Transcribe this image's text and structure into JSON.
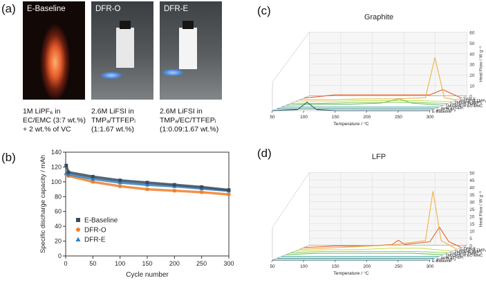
{
  "panel_labels": {
    "a": "(a)",
    "b": "(b)",
    "c": "(c)",
    "d": "(d)"
  },
  "photos": [
    {
      "title": "E-Baseline",
      "caption": [
        "1M LiPF₆ in",
        "EC/EMC (3:7 wt.%)",
        "+ 2 wt.% of VC"
      ]
    },
    {
      "title": "DFR-O",
      "caption": [
        "2.6M LiFSI in",
        "TMPₐ/TTFEPᵢ",
        "(1:1.67 wt.%)"
      ]
    },
    {
      "title": "DFR-E",
      "caption": [
        "2.6M LiFSI in",
        "TMPₐ/EC/TTFEPᵢ",
        "(1:0.09:1.67 wt.%)"
      ]
    }
  ],
  "chart_data": [
    {
      "type": "scatter",
      "panel": "(b)",
      "xlabel": "Cycle number",
      "ylabel": "Specific discharge capacity / mAh",
      "xlim": [
        0,
        300
      ],
      "ylim": [
        0,
        140
      ],
      "xticks": [
        0,
        50,
        100,
        150,
        200,
        250,
        300
      ],
      "yticks": [
        0,
        20,
        40,
        60,
        80,
        100,
        120,
        140
      ],
      "series": [
        {
          "name": "E-Baseline",
          "color": "#3a4a5c",
          "marker": "square",
          "x": [
            1,
            5,
            50,
            100,
            150,
            200,
            250,
            300
          ],
          "y": [
            122,
            113,
            107,
            102,
            99,
            96,
            93,
            89
          ]
        },
        {
          "name": "DFR-O",
          "color": "#f07f2a",
          "marker": "circle",
          "x": [
            1,
            5,
            50,
            100,
            150,
            200,
            250,
            300
          ],
          "y": [
            110,
            108,
            100,
            94,
            90,
            88,
            86,
            83
          ]
        },
        {
          "name": "DFR-E",
          "color": "#2f7fc1",
          "marker": "triangle",
          "x": [
            1,
            5,
            50,
            100,
            150,
            200,
            250,
            300
          ],
          "y": [
            112,
            110,
            104,
            99,
            96,
            94,
            91,
            88
          ]
        }
      ]
    },
    {
      "type": "line",
      "panel": "(c)",
      "title": "Graphite",
      "xlabel": "Temperature / °C",
      "ylabel": "Heat Flow / W g⁻¹",
      "xticks": [
        50,
        100,
        150,
        200,
        250,
        300
      ],
      "zticks": [
        0,
        10,
        20,
        30,
        40,
        50,
        60
      ],
      "series": [
        {
          "name": "E-Baseline",
          "color": "#2e5e6e",
          "x": [
            50,
            90,
            105,
            120,
            150,
            200,
            250,
            300
          ],
          "y": [
            0,
            1,
            8,
            1,
            0,
            0,
            0,
            0
          ]
        },
        {
          "name": "pure TMPₐ",
          "color": "#3b8f8a",
          "x": [
            50,
            100,
            150,
            200,
            250,
            300
          ],
          "y": [
            0,
            0,
            0,
            0,
            0,
            0
          ]
        },
        {
          "name": "pure TTFEPᵢ",
          "color": "#4aa5a0",
          "x": [
            50,
            100,
            150,
            200,
            250,
            300
          ],
          "y": [
            0,
            0,
            0,
            0,
            0,
            0
          ]
        },
        {
          "name": "1M LiFSI in EC-EMC",
          "color": "#6cc06a",
          "x": [
            50,
            100,
            150,
            200,
            230,
            250,
            300
          ],
          "y": [
            0,
            1,
            1,
            2,
            6,
            2,
            0
          ]
        },
        {
          "name": "1M LiFSI-TMPₐ",
          "color": "#8fd06a",
          "x": [
            50,
            100,
            150,
            200,
            250,
            300
          ],
          "y": [
            0,
            0,
            1,
            1,
            1,
            0
          ]
        },
        {
          "name": "2M LiFSI-TMPₐ",
          "color": "#c8e05a",
          "x": [
            50,
            100,
            150,
            200,
            250,
            300
          ],
          "y": [
            0,
            0,
            1,
            1,
            1,
            0
          ]
        },
        {
          "name": "4M LiFSI-TMPₐ",
          "color": "#f0b040",
          "x": [
            50,
            100,
            150,
            200,
            250,
            265,
            280,
            300
          ],
          "y": [
            0,
            0,
            1,
            1,
            2,
            40,
            2,
            0
          ]
        },
        {
          "name": "DFR-E",
          "color": "#e8602a",
          "x": [
            50,
            100,
            150,
            200,
            250,
            270,
            300
          ],
          "y": [
            0,
            3,
            3,
            3,
            3,
            8,
            0
          ]
        }
      ]
    },
    {
      "type": "line",
      "panel": "(d)",
      "title": "LFP",
      "xlabel": "Temperature / °C",
      "ylabel": "Heat Flow / W g⁻¹",
      "xticks": [
        50,
        100,
        150,
        200,
        250,
        300
      ],
      "zticks": [
        0,
        5,
        10,
        15,
        20,
        25,
        30,
        35,
        40,
        45,
        50
      ],
      "series": [
        {
          "name": "E-Baseline",
          "color": "#2e5e6e",
          "x": [
            50,
            100,
            150,
            200,
            250,
            300
          ],
          "y": [
            0,
            0,
            0,
            0,
            0,
            0
          ]
        },
        {
          "name": "pure TMPₐ",
          "color": "#3b8f8a",
          "x": [
            50,
            100,
            150,
            200,
            250,
            300
          ],
          "y": [
            0,
            0,
            0,
            0,
            0,
            0
          ]
        },
        {
          "name": "pure TTFEPᵢ",
          "color": "#4aa5a0",
          "x": [
            50,
            100,
            150,
            200,
            250,
            300
          ],
          "y": [
            0,
            0,
            0,
            0,
            0,
            0
          ]
        },
        {
          "name": "1M LiFSI in EC-EMC",
          "color": "#6cc06a",
          "x": [
            50,
            100,
            150,
            200,
            250,
            300
          ],
          "y": [
            0,
            1,
            1,
            1,
            1,
            0
          ]
        },
        {
          "name": "1M LiFSI-TMPₐ",
          "color": "#8fd06a",
          "x": [
            50,
            100,
            150,
            200,
            250,
            300
          ],
          "y": [
            0,
            1,
            1,
            1,
            1,
            0
          ]
        },
        {
          "name": "2M LiFSI-TMPₐ",
          "color": "#c8e05a",
          "x": [
            50,
            100,
            150,
            200,
            250,
            300
          ],
          "y": [
            0,
            1,
            1,
            2,
            2,
            0
          ]
        },
        {
          "name": "4M LiFSI-TMPₐ",
          "color": "#f0b040",
          "x": [
            50,
            100,
            150,
            200,
            250,
            262,
            275,
            300
          ],
          "y": [
            0,
            1,
            2,
            3,
            6,
            40,
            6,
            0
          ]
        },
        {
          "name": "DFR-E",
          "color": "#e8602a",
          "x": [
            50,
            100,
            150,
            190,
            200,
            210,
            250,
            265,
            280,
            300
          ],
          "y": [
            0,
            1,
            1,
            2,
            5,
            2,
            4,
            14,
            4,
            0
          ]
        }
      ]
    }
  ]
}
